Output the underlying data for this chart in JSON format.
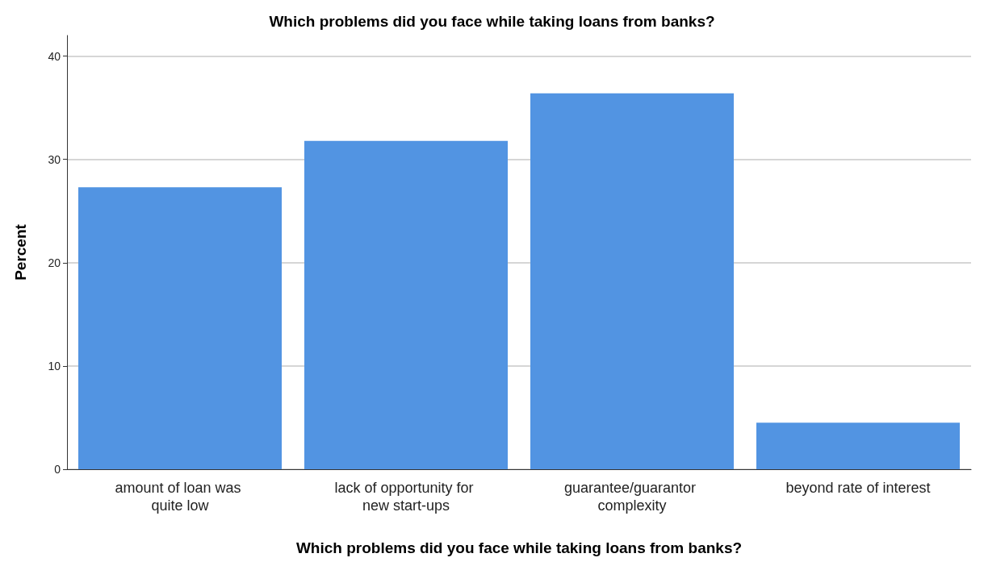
{
  "chart_data": {
    "type": "bar",
    "title": "Which problems did you face while taking loans from banks?",
    "xlabel": "Which problems did you face while taking loans from banks?",
    "ylabel": "Percent",
    "categories": [
      "amount of loan was quite low",
      "lack of opportunity for new start-ups",
      "guarantee/guarantor complexity",
      "beyond rate of interest"
    ],
    "values": [
      27.3,
      31.8,
      36.4,
      4.5
    ],
    "color": "#5294e2",
    "ylim": [
      0,
      42
    ],
    "yticks": [
      0,
      10,
      20,
      30,
      40
    ],
    "grid": "y"
  }
}
